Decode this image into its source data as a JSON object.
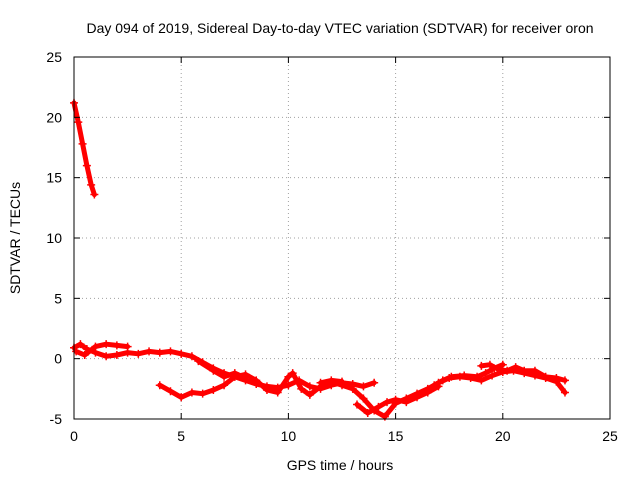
{
  "chart_data": {
    "type": "scatter",
    "title": "Day 094 of 2019, Sidereal Day-to-day VTEC variation (SDTVAR) for receiver oron",
    "xlabel": "GPS time / hours",
    "ylabel": "SDTVAR / TECUs",
    "xlim": [
      0,
      25
    ],
    "ylim": [
      -5,
      25
    ],
    "xticks": [
      0,
      5,
      10,
      15,
      20,
      25
    ],
    "yticks": [
      -5,
      0,
      5,
      10,
      15,
      20,
      25
    ],
    "grid": true,
    "series": [
      {
        "name": "SDTVAR",
        "color": "#ff0000",
        "marker": "plus",
        "segments": [
          [
            [
              0.0,
              21.2
            ],
            [
              0.2,
              19.6
            ],
            [
              0.4,
              17.8
            ],
            [
              0.6,
              16.0
            ],
            [
              0.8,
              14.4
            ],
            [
              0.95,
              13.6
            ]
          ],
          [
            [
              0.0,
              0.9
            ],
            [
              0.3,
              1.2
            ],
            [
              0.6,
              0.8
            ],
            [
              1.0,
              0.5
            ],
            [
              1.5,
              0.2
            ],
            [
              2.0,
              0.3
            ],
            [
              2.5,
              0.5
            ],
            [
              3.0,
              0.4
            ],
            [
              3.5,
              0.6
            ],
            [
              4.0,
              0.5
            ],
            [
              4.5,
              0.6
            ],
            [
              5.0,
              0.4
            ],
            [
              5.5,
              0.2
            ],
            [
              6.0,
              -0.3
            ],
            [
              6.5,
              -0.8
            ],
            [
              7.0,
              -1.2
            ],
            [
              7.5,
              -1.5
            ],
            [
              8.0,
              -1.8
            ],
            [
              8.5,
              -2.1
            ],
            [
              9.0,
              -2.3
            ],
            [
              9.5,
              -2.4
            ],
            [
              10.0,
              -2.2
            ],
            [
              10.5,
              -1.8
            ],
            [
              11.0,
              -2.3
            ],
            [
              11.5,
              -2.5
            ],
            [
              12.0,
              -2.2
            ],
            [
              12.5,
              -2.0
            ],
            [
              13.0,
              -2.1
            ],
            [
              13.5,
              -2.3
            ],
            [
              14.0,
              -2.0
            ]
          ],
          [
            [
              0.1,
              0.6
            ],
            [
              0.5,
              0.3
            ],
            [
              1.0,
              1.0
            ],
            [
              1.5,
              1.2
            ],
            [
              2.0,
              1.1
            ],
            [
              2.5,
              1.0
            ]
          ],
          [
            [
              4.0,
              -2.2
            ],
            [
              4.5,
              -2.7
            ],
            [
              5.0,
              -3.2
            ],
            [
              5.5,
              -2.8
            ],
            [
              6.0,
              -2.9
            ],
            [
              6.5,
              -2.6
            ],
            [
              7.0,
              -2.2
            ],
            [
              7.5,
              -1.5
            ],
            [
              8.0,
              -1.3
            ],
            [
              8.5,
              -1.8
            ],
            [
              9.0,
              -2.6
            ],
            [
              9.5,
              -2.8
            ],
            [
              10.0,
              -1.5
            ],
            [
              10.2,
              -1.2
            ],
            [
              10.6,
              -2.5
            ],
            [
              11.0,
              -3.0
            ],
            [
              11.5,
              -2.3
            ],
            [
              12.0,
              -1.9
            ],
            [
              12.5,
              -2.2
            ],
            [
              13.0,
              -2.5
            ],
            [
              13.5,
              -3.3
            ],
            [
              14.0,
              -4.3
            ],
            [
              14.5,
              -4.8
            ],
            [
              15.0,
              -3.7
            ],
            [
              15.5,
              -3.3
            ],
            [
              16.0,
              -2.9
            ],
            [
              16.5,
              -2.5
            ],
            [
              17.0,
              -2.0
            ],
            [
              17.5,
              -1.6
            ],
            [
              18.0,
              -1.5
            ],
            [
              18.5,
              -1.6
            ],
            [
              19.0,
              -1.8
            ],
            [
              19.5,
              -1.4
            ],
            [
              20.0,
              -1.1
            ],
            [
              20.5,
              -1.0
            ],
            [
              21.0,
              -1.2
            ],
            [
              21.5,
              -1.4
            ],
            [
              22.0,
              -1.6
            ],
            [
              22.5,
              -1.9
            ],
            [
              22.9,
              -2.8
            ]
          ],
          [
            [
              5.8,
              -0.2
            ],
            [
              6.5,
              -1.0
            ],
            [
              7.0,
              -1.5
            ],
            [
              7.5,
              -1.2
            ],
            [
              8.0,
              -1.6
            ]
          ],
          [
            [
              11.5,
              -2.0
            ],
            [
              12.0,
              -1.8
            ],
            [
              12.5,
              -1.9
            ]
          ],
          [
            [
              13.2,
              -3.8
            ],
            [
              13.7,
              -4.5
            ],
            [
              14.2,
              -4.0
            ],
            [
              14.6,
              -3.6
            ],
            [
              15.0,
              -3.4
            ],
            [
              15.5,
              -3.6
            ],
            [
              16.0,
              -3.2
            ],
            [
              16.5,
              -2.8
            ],
            [
              17.0,
              -2.3
            ]
          ],
          [
            [
              16.8,
              -2.2
            ],
            [
              17.2,
              -1.8
            ],
            [
              17.6,
              -1.5
            ],
            [
              18.2,
              -1.4
            ],
            [
              18.8,
              -1.5
            ],
            [
              19.2,
              -1.2
            ],
            [
              19.6,
              -0.8
            ],
            [
              20.0,
              -0.5
            ]
          ],
          [
            [
              19.0,
              -0.6
            ],
            [
              19.4,
              -0.5
            ],
            [
              19.8,
              -0.9
            ],
            [
              20.2,
              -1.0
            ],
            [
              20.6,
              -0.7
            ],
            [
              21.0,
              -1.0
            ],
            [
              21.5,
              -1.0
            ],
            [
              22.0,
              -1.5
            ],
            [
              22.5,
              -1.6
            ],
            [
              22.9,
              -1.8
            ]
          ]
        ]
      }
    ]
  }
}
